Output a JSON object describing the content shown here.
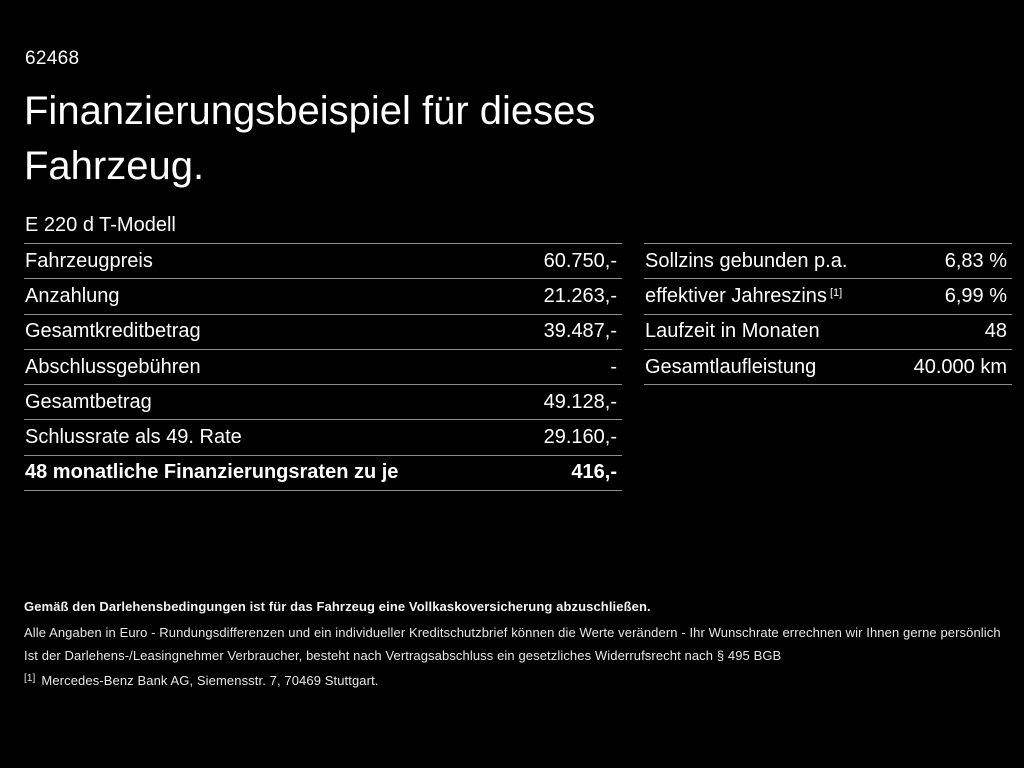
{
  "colors": {
    "background": "#000000",
    "text": "#ffffff",
    "fine_print": "#e8e8e8",
    "divider": "#8f8f8f"
  },
  "header": {
    "doc_number": "62468",
    "title_line1": "Finanzierungsbeispiel für dieses",
    "title_line2": "Fahrzeug.",
    "model": "E 220 d T-Modell"
  },
  "financing_table": {
    "rows": [
      {
        "label": "Fahrzeugpreis",
        "value": "60.750,-"
      },
      {
        "label": "Anzahlung",
        "value": "21.263,-"
      },
      {
        "label": "Gesamtkreditbetrag",
        "value": "39.487,-"
      },
      {
        "label": "Abschlussgebühren",
        "value": "-"
      },
      {
        "label": "Gesamtbetrag",
        "value": "49.128,-"
      },
      {
        "label": "Schlussrate als 49. Rate",
        "value": "29.160,-"
      },
      {
        "label": "48 monatliche Finanzierungsraten zu je",
        "value": "416,-"
      }
    ]
  },
  "conditions_table": {
    "rows": [
      {
        "label": "Sollzins gebunden p.a.",
        "footnote_marker": "",
        "value": "6,83 %"
      },
      {
        "label": "effektiver Jahreszins",
        "footnote_marker": "[1]",
        "value": "6,99 %"
      },
      {
        "label": "Laufzeit in Monaten",
        "footnote_marker": "",
        "value": "48"
      },
      {
        "label": "Gesamtlaufleistung",
        "footnote_marker": "",
        "value": "40.000 km"
      }
    ]
  },
  "fine_print": {
    "line1": "Gemäß den Darlehensbedingungen ist für das Fahrzeug eine Vollkaskoversicherung abzuschließen.",
    "line2": "Alle Angaben in Euro - Rundungsdifferenzen und ein individueller Kreditschutzbrief können die Werte verändern - Ihr Wunschrate errechnen wir Ihnen gerne persönlich",
    "line3": "Ist der Darlehens-/Leasingnehmer Verbraucher, besteht nach Vertragsabschluss ein gesetzliches Widerrufsrecht nach § 495 BGB",
    "footnote_marker": "[1]",
    "footnote_text": "Mercedes-Benz Bank AG, Siemensstr. 7, 70469 Stuttgart."
  }
}
